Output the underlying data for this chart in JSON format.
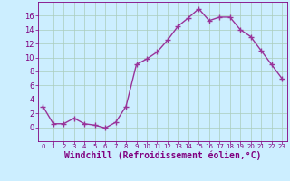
{
  "x": [
    0,
    1,
    2,
    3,
    4,
    5,
    6,
    7,
    8,
    9,
    10,
    11,
    12,
    13,
    14,
    15,
    16,
    17,
    18,
    19,
    20,
    21,
    22,
    23
  ],
  "y": [
    3.0,
    0.5,
    0.5,
    1.3,
    0.5,
    0.3,
    -0.1,
    0.7,
    3.0,
    9.0,
    9.8,
    10.8,
    12.5,
    14.5,
    15.7,
    17.0,
    15.3,
    15.8,
    15.8,
    14.0,
    13.0,
    11.0,
    9.0,
    7.0
  ],
  "line_color": "#993399",
  "marker": "+",
  "marker_size": 4,
  "linewidth": 1.0,
  "xlabel": "Windchill (Refroidissement éolien,°C)",
  "xlabel_fontsize": 7,
  "bg_color": "#cceeff",
  "grid_color": "#aaccbb",
  "axis_label_color": "#800080",
  "tick_color": "#800080",
  "ylim": [
    -2,
    18
  ],
  "xlim": [
    -0.5,
    23.5
  ],
  "yticks": [
    0,
    2,
    4,
    6,
    8,
    10,
    12,
    14,
    16
  ],
  "xticks": [
    0,
    1,
    2,
    3,
    4,
    5,
    6,
    7,
    8,
    9,
    10,
    11,
    12,
    13,
    14,
    15,
    16,
    17,
    18,
    19,
    20,
    21,
    22,
    23
  ],
  "spine_color": "#800080",
  "tick_fontsize_x": 5,
  "tick_fontsize_y": 6
}
